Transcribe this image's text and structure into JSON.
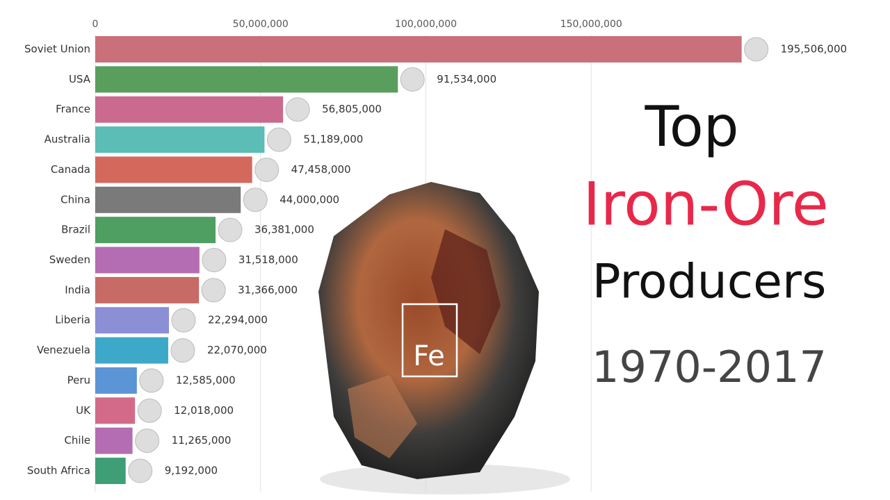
{
  "chart_data": {
    "type": "bar",
    "orientation": "horizontal",
    "title_lines": [
      "Top",
      "Iron-Ore",
      "Producers"
    ],
    "subtitle": "1970-2017",
    "element_symbol": "Fe",
    "categories": [
      "Soviet Union",
      "USA",
      "France",
      "Australia",
      "Canada",
      "China",
      "Brazil",
      "Sweden",
      "India",
      "Liberia",
      "Venezuela",
      "Peru",
      "UK",
      "Chile",
      "South Africa"
    ],
    "values": [
      195506000,
      91534000,
      56805000,
      51189000,
      47458000,
      44000000,
      36381000,
      31518000,
      31366000,
      22294000,
      22070000,
      12585000,
      12018000,
      11265000,
      9192000
    ],
    "value_labels": [
      "195,506,000",
      "91,534,000",
      "56,805,000",
      "51,189,000",
      "47,458,000",
      "44,000,000",
      "36,381,000",
      "31,518,000",
      "31,366,000",
      "22,294,000",
      "22,070,000",
      "12,585,000",
      "12,018,000",
      "11,265,000",
      "9,192,000"
    ],
    "colors": [
      "#c9707a",
      "#5a9e5e",
      "#c96a8e",
      "#5bbdb6",
      "#d5685c",
      "#7a7a7a",
      "#4f9e62",
      "#b46db3",
      "#c86a66",
      "#8b8fd6",
      "#3ea8c9",
      "#5b95d6",
      "#d46a8a",
      "#b46db3",
      "#3f9e76"
    ],
    "xlim": [
      0,
      200000000
    ],
    "xticks": [
      0,
      {
        "value": 50000000,
        "label": "50,000,000"
      },
      {
        "value": 100000000,
        "label": "100,000,000"
      },
      {
        "value": 150000000,
        "label": "150,000,000"
      }
    ],
    "grid": true
  }
}
